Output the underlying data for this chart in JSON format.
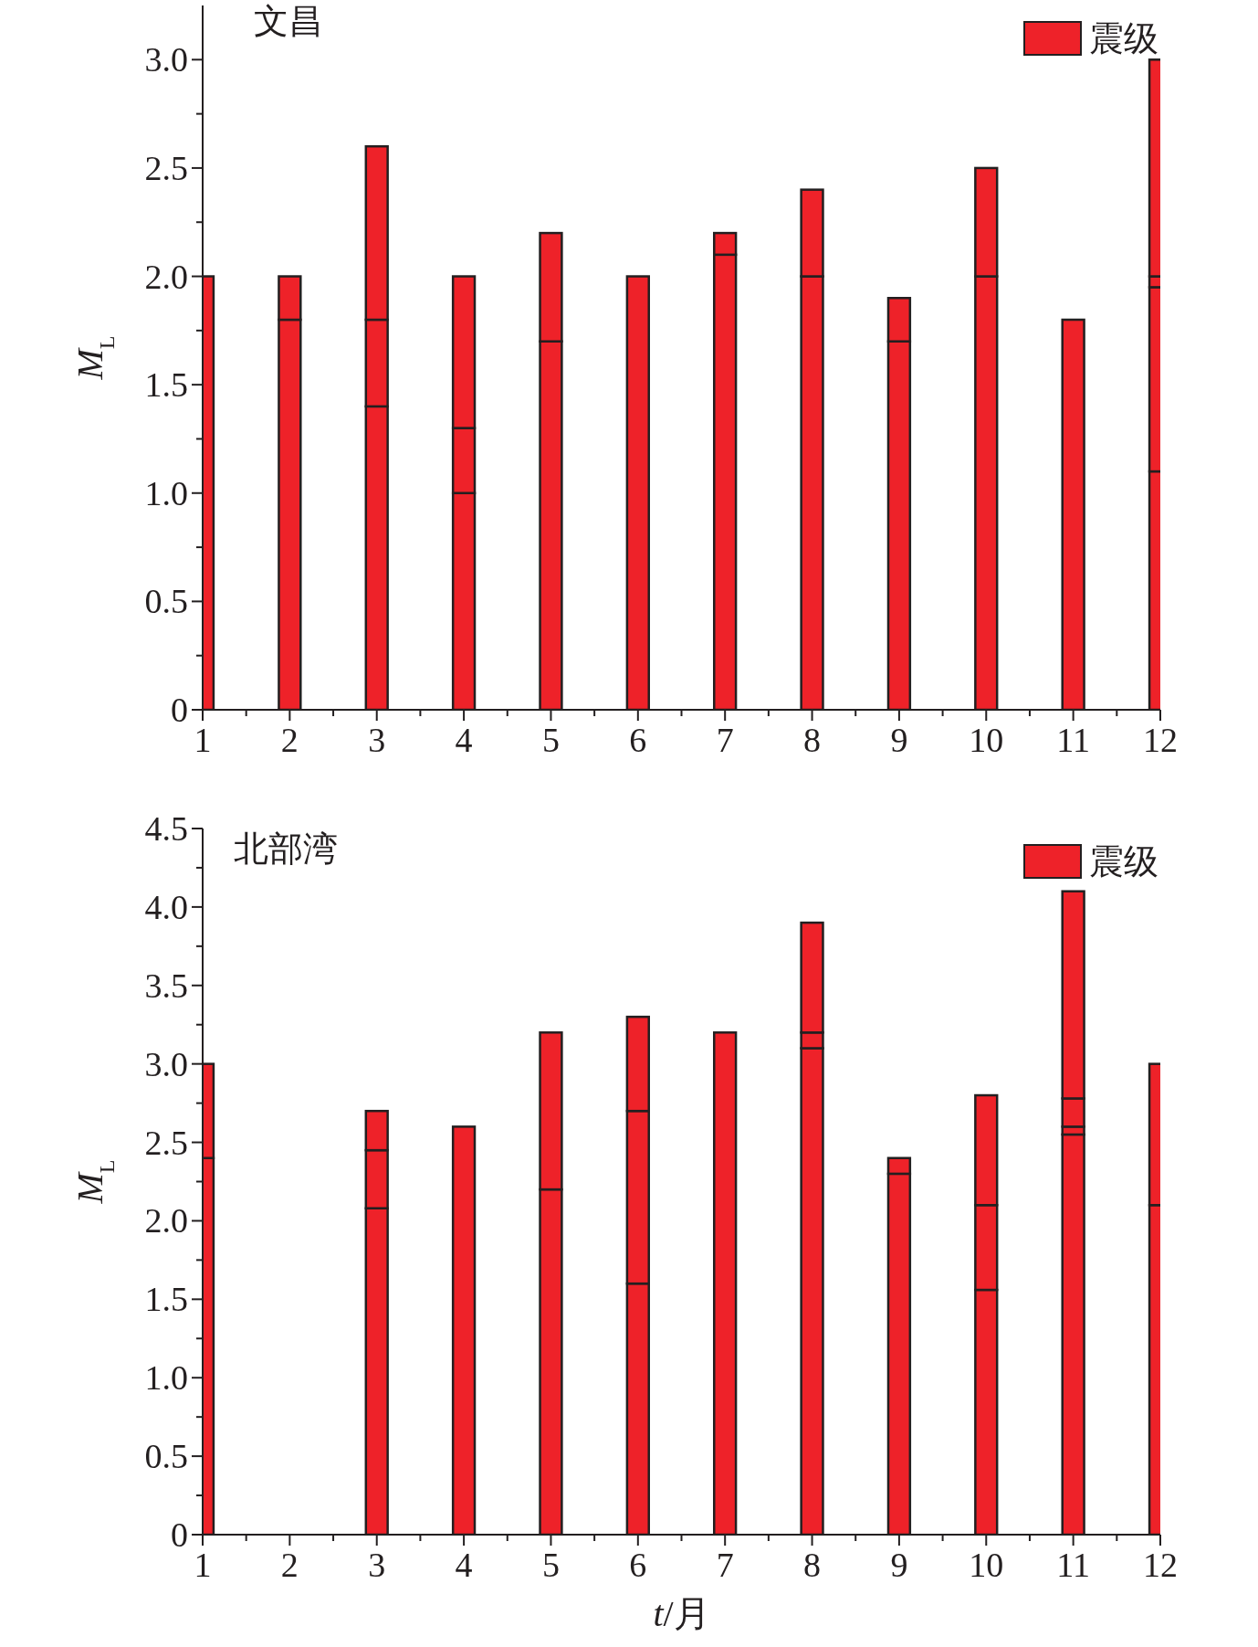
{
  "chart_data": [
    {
      "type": "bar",
      "stacked": true,
      "title": "文昌",
      "ylabel": "*M*$_{L}$",
      "x": [
        1,
        2,
        3,
        4,
        5,
        6,
        7,
        8,
        9,
        10,
        11,
        12
      ],
      "xlim": [
        1,
        12
      ],
      "xticks": [
        1,
        2,
        3,
        4,
        5,
        6,
        7,
        8,
        9,
        10,
        11,
        12
      ],
      "ylim": [
        0,
        3.25
      ],
      "yticks": [
        {
          "value": 0,
          "label": "0"
        },
        {
          "value": 0.5,
          "label": "0.5"
        },
        {
          "value": 1,
          "label": "1.0"
        },
        {
          "value": 1.5,
          "label": "1.5"
        },
        {
          "value": 2,
          "label": "2.0"
        },
        {
          "value": 2.5,
          "label": "2.5"
        },
        {
          "value": 3,
          "label": "3.0"
        }
      ],
      "legend": "top right",
      "series": [
        {
          "name": "震级",
          "color": "#ee2229",
          "values": [
            2.0,
            1.8,
            1.4,
            1.0,
            1.7,
            2.0,
            2.1,
            2.0,
            1.7,
            2.0,
            1.8,
            1.1
          ]
        },
        {
          "color": "#ee2229",
          "values": [
            null,
            0.2,
            0.4,
            0.3,
            0.5,
            null,
            0.1,
            0.4,
            0.2,
            0.5,
            null,
            0.85
          ]
        },
        {
          "color": "#ee2229",
          "values": [
            null,
            null,
            0.8,
            0.7,
            null,
            null,
            null,
            null,
            null,
            null,
            null,
            0.05
          ]
        },
        {
          "color": "#ee2229",
          "values": [
            null,
            null,
            null,
            null,
            null,
            null,
            null,
            null,
            null,
            null,
            null,
            1.0
          ]
        }
      ]
    },
    {
      "type": "bar",
      "stacked": true,
      "title": "北部湾",
      "xlabel": "*t*/月",
      "ylabel": "*M*$_{L}$",
      "x": [
        1,
        3,
        4,
        5,
        6,
        7,
        8,
        9,
        10,
        11,
        12
      ],
      "xlim": [
        1,
        12
      ],
      "xticks": [
        1,
        2,
        3,
        4,
        5,
        6,
        7,
        8,
        9,
        10,
        11,
        12
      ],
      "ylim": [
        0,
        4.5
      ],
      "yticks": [
        {
          "value": 0,
          "label": "0"
        },
        {
          "value": 0.5,
          "label": "0.5"
        },
        {
          "value": 1,
          "label": "1.0"
        },
        {
          "value": 1.5,
          "label": "1.5"
        },
        {
          "value": 2,
          "label": "2.0"
        },
        {
          "value": 2.5,
          "label": "2.5"
        },
        {
          "value": 3,
          "label": "3.0"
        },
        {
          "value": 3.5,
          "label": "3.5"
        },
        {
          "value": 4,
          "label": "4.0"
        },
        {
          "value": 4.5,
          "label": "4.5"
        }
      ],
      "legend": "top right",
      "series": [
        {
          "name": "震级",
          "color": "#ee2229",
          "values": [
            2.4,
            2.08,
            2.6,
            2.2,
            1.6,
            3.2,
            3.1,
            2.3,
            1.56,
            2.55,
            2.1
          ]
        },
        {
          "color": "#ee2229",
          "values": [
            0.6,
            0.37,
            null,
            1.0,
            1.1,
            null,
            0.1,
            0.1,
            0.54,
            0.05,
            0.9
          ]
        },
        {
          "color": "#ee2229",
          "values": [
            null,
            0.25,
            null,
            null,
            0.6,
            null,
            0.7,
            null,
            0.7,
            0.18,
            null
          ]
        },
        {
          "color": "#ee2229",
          "values": [
            null,
            null,
            null,
            null,
            null,
            null,
            null,
            null,
            null,
            1.32,
            null
          ]
        }
      ]
    }
  ]
}
